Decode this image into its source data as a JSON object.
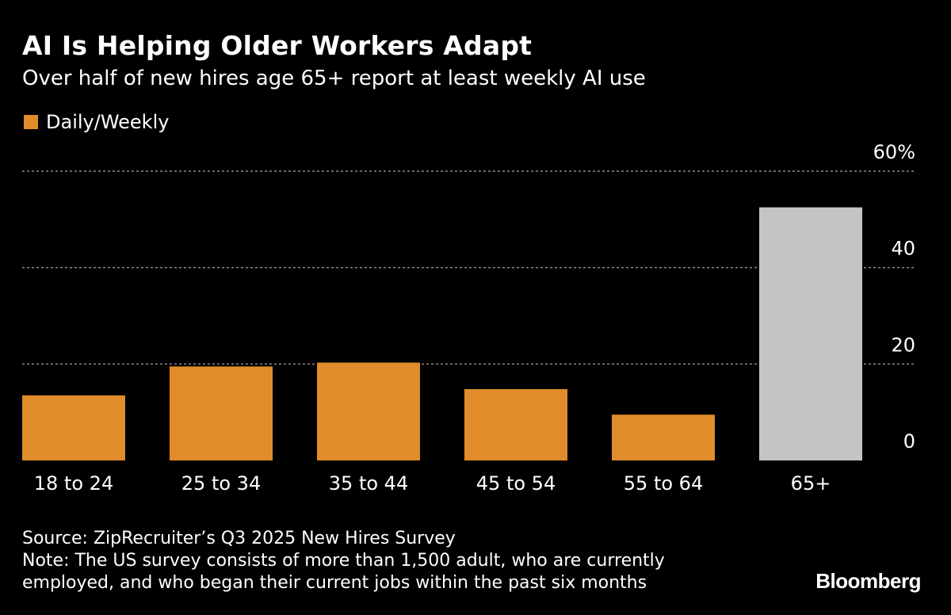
{
  "header": {
    "title": "AI Is Helping Older Workers Adapt",
    "subtitle": "Over half of new hires age 65+ report at least weekly AI use"
  },
  "legend": {
    "label": "Daily/Weekly",
    "color": "#e08c2a"
  },
  "colors": {
    "bar": "#e08c2a",
    "highlight": "#c4c4c4",
    "grid": "#8a8a8a",
    "background": "#000000"
  },
  "chart_data": {
    "type": "bar",
    "categories": [
      "18 to 24",
      "25 to 34",
      "35 to 44",
      "45 to 54",
      "55 to 64",
      "65+"
    ],
    "series": [
      {
        "name": "Daily/Weekly",
        "values": [
          13.5,
          19.5,
          20.3,
          14.8,
          9.5,
          52.5
        ]
      }
    ],
    "highlight_index": 5,
    "ylim": [
      0,
      60
    ],
    "yticks": [
      0,
      20,
      40,
      60
    ],
    "ytick_labels": [
      "0",
      "20",
      "40",
      "60%"
    ],
    "y_axis_side": "right",
    "grid": true,
    "legend_position": "top-left",
    "title": "AI Is Helping Older Workers Adapt",
    "xlabel": "",
    "ylabel": ""
  },
  "footer": {
    "source": "Source: ZipRecruiter’s Q3 2025 New Hires Survey",
    "note_line1": "Note: The US survey consists of more than 1,500 adult, who are currently",
    "note_line2": "employed, and who began their current jobs within the past six months",
    "brand": "Bloomberg"
  }
}
